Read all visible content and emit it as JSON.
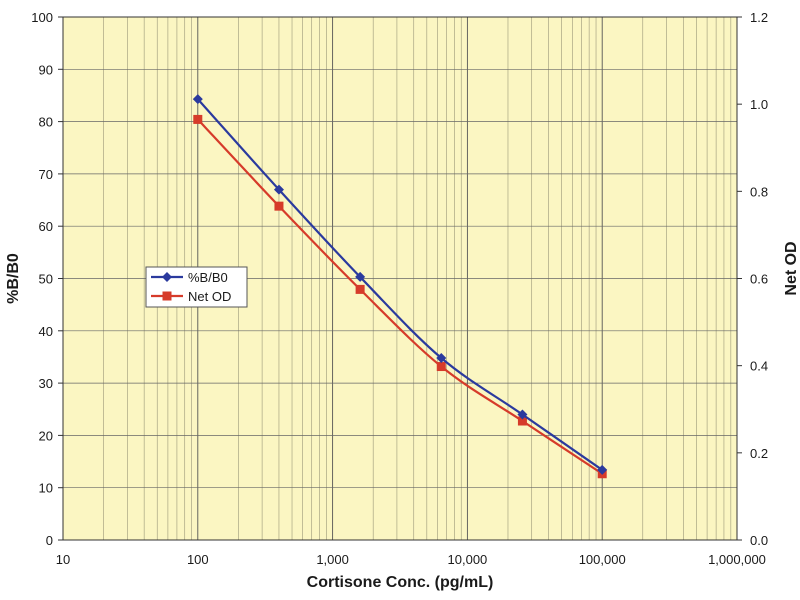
{
  "chart_data": {
    "type": "line",
    "x_scale": "log",
    "x": [
      100,
      400,
      1600,
      6400,
      25600,
      100000
    ],
    "series": [
      {
        "name": "%B/B0",
        "axis": "left",
        "color": "#2b3a9e",
        "marker": "diamond",
        "values": [
          84.3,
          67.0,
          50.3,
          34.8,
          24.0,
          13.4
        ]
      },
      {
        "name": "Net OD",
        "axis": "right",
        "color": "#d63b2a",
        "marker": "square",
        "values": [
          0.965,
          0.766,
          0.575,
          0.398,
          0.273,
          0.152
        ]
      }
    ],
    "xlabel": "Cortisone Conc. (pg/mL)",
    "ylabel": "%B/B0",
    "y2label": "Net OD",
    "xlim": [
      10,
      1000000
    ],
    "ylim": [
      0,
      100
    ],
    "y2lim": [
      0,
      1.2
    ],
    "x_ticks": [
      10,
      100,
      1000,
      10000,
      100000,
      1000000
    ],
    "x_tick_labels": [
      "10",
      "100",
      "1,000",
      "10,000",
      "100,000",
      "1,000,000"
    ],
    "y_ticks": [
      0,
      10,
      20,
      30,
      40,
      50,
      60,
      70,
      80,
      90,
      100
    ],
    "y_tick_labels": [
      "0",
      "10",
      "20",
      "30",
      "40",
      "50",
      "60",
      "70",
      "80",
      "90",
      "100"
    ],
    "y2_ticks": [
      0,
      0.2,
      0.4,
      0.6,
      0.8,
      1.0,
      1.2
    ],
    "y2_tick_labels": [
      "0.0",
      "0.2",
      "0.4",
      "0.6",
      "0.8",
      "1.0",
      "1.2"
    ],
    "grid": true,
    "background_color": "#fbf6c2",
    "legend_position": "left-middle"
  }
}
